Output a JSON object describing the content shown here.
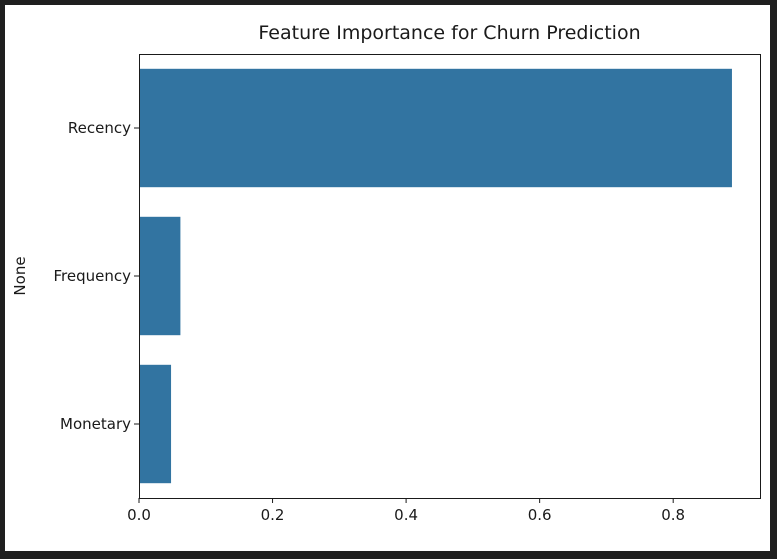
{
  "chart_data": {
    "type": "bar",
    "orientation": "horizontal",
    "title": "Feature Importance for Churn Prediction",
    "xlabel": "",
    "ylabel": "None",
    "categories": [
      "Recency",
      "Frequency",
      "Monetary"
    ],
    "values": [
      0.888,
      0.062,
      0.048
    ],
    "xlim": [
      0,
      0.93
    ],
    "xticks": [
      0.0,
      0.2,
      0.4,
      0.6,
      0.8
    ],
    "xtick_labels": [
      "0.0",
      "0.2",
      "0.4",
      "0.6",
      "0.8"
    ],
    "bar_color": "#3274a1",
    "grid": false,
    "legend": "none"
  }
}
